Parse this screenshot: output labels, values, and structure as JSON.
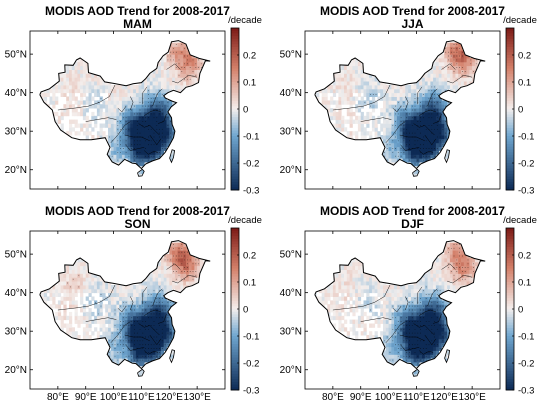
{
  "title": "MODIS AOD Trend for 2008-2017",
  "unit": "/decade",
  "panels": [
    {
      "season": "MAM"
    },
    {
      "season": "JJA"
    },
    {
      "season": "SON"
    },
    {
      "season": "DJF"
    }
  ],
  "lat_ticks": [
    "20°N",
    "30°N",
    "40°N",
    "50°N"
  ],
  "lon_ticks": [
    "80°E",
    "90°E",
    "100°E",
    "110°E",
    "120°E",
    "130°E"
  ],
  "colorbar_ticks": [
    "0.2",
    "0.1",
    "0",
    "-0.1",
    "-0.2",
    "-0.3"
  ],
  "colors": {
    "strong_positive": "#7b1a16",
    "positive": "#d4806a",
    "neutral": "#f4efed",
    "negative": "#6fa6cf",
    "strong_negative": "#0d2a55"
  }
}
